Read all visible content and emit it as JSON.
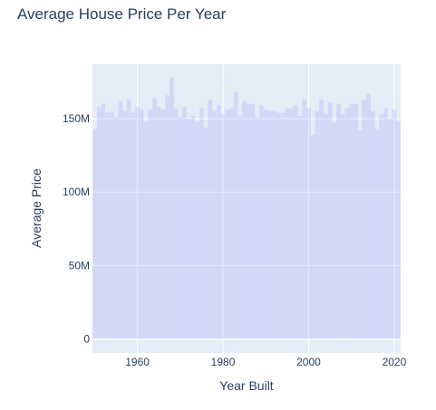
{
  "chart_data": {
    "type": "bar",
    "title": "Average House Price Per Year",
    "xlabel": "Year Built",
    "ylabel": "Average Price",
    "x": [
      1950,
      1951,
      1952,
      1953,
      1954,
      1955,
      1956,
      1957,
      1958,
      1959,
      1960,
      1961,
      1962,
      1963,
      1964,
      1965,
      1966,
      1967,
      1968,
      1969,
      1970,
      1971,
      1972,
      1973,
      1974,
      1975,
      1976,
      1977,
      1978,
      1979,
      1980,
      1981,
      1982,
      1983,
      1984,
      1985,
      1986,
      1987,
      1988,
      1989,
      1990,
      1991,
      1992,
      1993,
      1994,
      1995,
      1996,
      1997,
      1998,
      1999,
      2000,
      2001,
      2002,
      2003,
      2004,
      2005,
      2006,
      2007,
      2008,
      2009,
      2010,
      2011,
      2012,
      2013,
      2014,
      2015,
      2016,
      2017,
      2018,
      2019,
      2020,
      2021
    ],
    "values": [
      143,
      158,
      160,
      154,
      155,
      151,
      162,
      155,
      163,
      154,
      158,
      156,
      148,
      156,
      164,
      158,
      156,
      166,
      178,
      157,
      151,
      158,
      150,
      152,
      148,
      157,
      144,
      163,
      155,
      159,
      153,
      156,
      157,
      168,
      152,
      162,
      160,
      160,
      151,
      159,
      156,
      155,
      155,
      154,
      154,
      157,
      157,
      159,
      152,
      163,
      157,
      139,
      155,
      163,
      153,
      161,
      147,
      160,
      153,
      157,
      160,
      160,
      142,
      163,
      167,
      155,
      143,
      153,
      157,
      150,
      156,
      148
    ],
    "xticks": [
      "1960",
      "1980",
      "2000",
      "2020"
    ],
    "xtick_values": [
      1960,
      1980,
      2000,
      2020
    ],
    "yticks": [
      "0",
      "50M",
      "100M",
      "150M"
    ],
    "ytick_values": [
      0,
      50,
      100,
      150
    ],
    "xlim": [
      1949.5,
      2021.5
    ],
    "ylim": [
      -9.5,
      187
    ],
    "grid": true,
    "colors": {
      "bar": "#636efa",
      "plot_bg": "#e5ecf6",
      "text": "#2a3f5f"
    }
  }
}
